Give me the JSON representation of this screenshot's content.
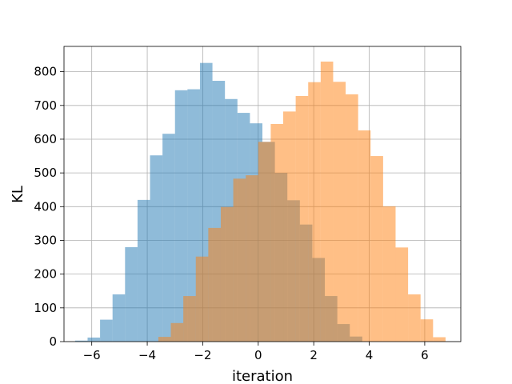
{
  "chart_data": {
    "type": "bar",
    "title": "",
    "xlabel": "iteration",
    "ylabel": "KL",
    "xlim": [
      -7,
      7.3
    ],
    "ylim": [
      0,
      875
    ],
    "xticks": [
      -6,
      -4,
      -2,
      0,
      2,
      4,
      6
    ],
    "xtick_labels": [
      "−6",
      "−4",
      "−2",
      "0",
      "2",
      "4",
      "6"
    ],
    "yticks": [
      0,
      100,
      200,
      300,
      400,
      500,
      600,
      700,
      800
    ],
    "ytick_labels": [
      "0",
      "100",
      "200",
      "300",
      "400",
      "500",
      "600",
      "700",
      "800"
    ],
    "grid": true,
    "series": [
      {
        "color": "#1f77b4",
        "opacity": 0.5,
        "bin_edges": [
          -6.6,
          -6.15,
          -5.7,
          -5.25,
          -4.8,
          -4.35,
          -3.9,
          -3.45,
          -3.0,
          -2.55,
          -2.1,
          -1.65,
          -1.2,
          -0.75,
          -0.3,
          0.15,
          0.6,
          1.05,
          1.5,
          1.95,
          2.4,
          2.85,
          3.3,
          3.75
        ],
        "values": [
          3,
          12,
          65,
          140,
          280,
          420,
          552,
          616,
          745,
          748,
          826,
          773,
          719,
          678,
          647,
          592,
          500,
          419,
          347,
          248,
          135,
          52,
          15
        ]
      },
      {
        "color": "#ff7f0e",
        "opacity": 0.5,
        "bin_edges": [
          -3.6,
          -3.15,
          -2.7,
          -2.25,
          -1.8,
          -1.35,
          -0.9,
          -0.45,
          0.0,
          0.45,
          0.9,
          1.35,
          1.8,
          2.25,
          2.7,
          3.15,
          3.6,
          4.05,
          4.5,
          4.95,
          5.4,
          5.85,
          6.3,
          6.75
        ],
        "values": [
          14,
          55,
          135,
          252,
          337,
          399,
          483,
          493,
          592,
          645,
          682,
          728,
          769,
          830,
          770,
          733,
          626,
          550,
          401,
          279,
          140,
          66,
          13
        ]
      }
    ]
  }
}
